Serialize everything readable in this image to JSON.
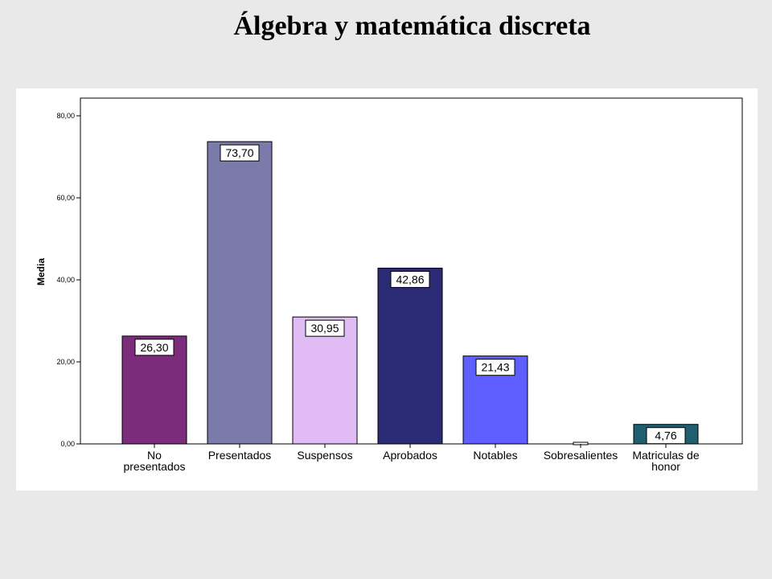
{
  "slide": {
    "title": "Álgebra y matemática discreta"
  },
  "chart_data": {
    "type": "bar",
    "title": "Álgebra y matemática discreta",
    "ylabel": "Media",
    "xlabel": "",
    "ylim": [
      0,
      80
    ],
    "yticks": [
      "0,00",
      "20,00",
      "40,00",
      "60,00",
      "80,00"
    ],
    "ytick_values": [
      0,
      20,
      40,
      60,
      80
    ],
    "categories": [
      [
        "No",
        "presentados"
      ],
      [
        "Presentados"
      ],
      [
        "Suspensos"
      ],
      [
        "Aprobados"
      ],
      [
        "Notables"
      ],
      [
        "Sobresalientes"
      ],
      [
        "Matriculas de",
        "honor"
      ]
    ],
    "values": [
      26.3,
      73.7,
      30.95,
      42.86,
      21.43,
      0,
      4.76
    ],
    "value_labels": [
      "26,30",
      "73,70",
      "30,95",
      "42,86",
      "21,43",
      "",
      "4,76"
    ],
    "colors": [
      "#7b2d7b",
      "#7a7aab",
      "#e1bbf3",
      "#2b2b75",
      "#5f5fff",
      "#ffffff",
      "#1f5f70"
    ],
    "grid": false,
    "legend": "none"
  }
}
